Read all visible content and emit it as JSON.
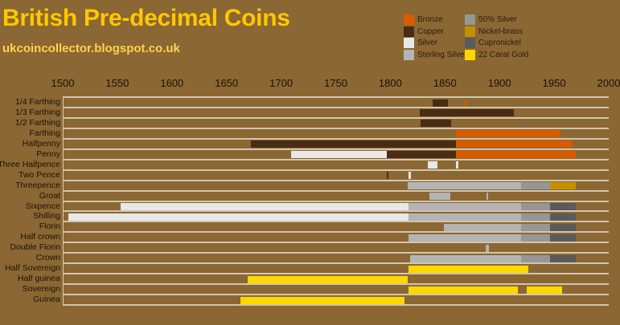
{
  "header": {
    "title": "British Pre-decimal Coins",
    "subtitle": "ukcoincollector.blogspot.co.uk"
  },
  "legend": [
    {
      "label": "Bronze",
      "color": "#d95b00"
    },
    {
      "label": "Copper",
      "color": "#4a2c14"
    },
    {
      "label": "Silver",
      "color": "#e8e8e8"
    },
    {
      "label": "Sterling Silver",
      "color": "#b4b4b4"
    },
    {
      "label": "50% Silver",
      "color": "#969696"
    },
    {
      "label": "Nickel-brass",
      "color": "#c49000"
    },
    {
      "label": "Cupronickel",
      "color": "#5a5a5a"
    },
    {
      "label": "22 Carat Gold",
      "color": "#ffd700"
    }
  ],
  "chart_data": {
    "type": "bar",
    "subtype": "horizontal timeline (Gantt)",
    "title": "British Pre-decimal Coins",
    "subtitle": "ukcoincollector.blogspot.co.uk",
    "xlabel": "",
    "ylabel": "",
    "xlim": [
      1500,
      2000
    ],
    "x_ticks": [
      1500,
      1550,
      1600,
      1650,
      1700,
      1750,
      1800,
      1850,
      1900,
      1950,
      2000
    ],
    "grid": "horizontal row separators",
    "legend_position": "top-right",
    "categories": [
      "1/4 Farthing",
      "1/3 Farthing",
      "1/2 Farthing",
      "Farthing",
      "Halfpenny",
      "Penny",
      "Three Halfpence",
      "Two Pence",
      "Threepence",
      "Groat",
      "Sixpence",
      "Shilling",
      "Florin",
      "Half crown",
      "Double Florin",
      "Crown",
      "Half Sovereign",
      "Half guinea",
      "Sovereign",
      "Guinea"
    ],
    "rows": [
      {
        "coin": "1/4 Farthing",
        "segments": [
          {
            "metal": "Copper",
            "start": 1839,
            "end": 1853
          },
          {
            "metal": "Bronze",
            "start": 1868,
            "end": 1869
          }
        ]
      },
      {
        "coin": "1/3 Farthing",
        "segments": [
          {
            "metal": "Copper",
            "start": 1827,
            "end": 1913
          }
        ]
      },
      {
        "coin": "1/2 Farthing",
        "segments": [
          {
            "metal": "Copper",
            "start": 1828,
            "end": 1856
          }
        ]
      },
      {
        "coin": "Farthing",
        "segments": [
          {
            "metal": "Bronze",
            "start": 1860,
            "end": 1956
          }
        ]
      },
      {
        "coin": "Halfpenny",
        "segments": [
          {
            "metal": "Copper",
            "start": 1672,
            "end": 1860
          },
          {
            "metal": "Bronze",
            "start": 1860,
            "end": 1967
          }
        ]
      },
      {
        "coin": "Penny",
        "segments": [
          {
            "metal": "Silver",
            "start": 1709,
            "end": 1797
          },
          {
            "metal": "Copper",
            "start": 1797,
            "end": 1860
          },
          {
            "metal": "Bronze",
            "start": 1860,
            "end": 1970
          }
        ]
      },
      {
        "coin": "Three Halfpence",
        "segments": [
          {
            "metal": "Silver",
            "start": 1834,
            "end": 1843
          },
          {
            "metal": "Silver",
            "start": 1860,
            "end": 1862
          }
        ]
      },
      {
        "coin": "Two Pence",
        "segments": [
          {
            "metal": "Copper",
            "start": 1797,
            "end": 1798
          },
          {
            "metal": "Silver",
            "start": 1817,
            "end": 1819
          }
        ]
      },
      {
        "coin": "Threepence",
        "segments": [
          {
            "metal": "Sterling Silver",
            "start": 1816,
            "end": 1920
          },
          {
            "metal": "50% Silver",
            "start": 1920,
            "end": 1946
          },
          {
            "metal": "Nickel-brass",
            "start": 1946,
            "end": 1970
          }
        ]
      },
      {
        "coin": "Groat",
        "segments": [
          {
            "metal": "Sterling Silver",
            "start": 1836,
            "end": 1855
          },
          {
            "metal": "Sterling Silver",
            "start": 1888,
            "end": 1889
          }
        ]
      },
      {
        "coin": "Sixpence",
        "segments": [
          {
            "metal": "Silver",
            "start": 1553,
            "end": 1817
          },
          {
            "metal": "Sterling Silver",
            "start": 1817,
            "end": 1920
          },
          {
            "metal": "50% Silver",
            "start": 1920,
            "end": 1946
          },
          {
            "metal": "Cupronickel",
            "start": 1946,
            "end": 1970
          }
        ]
      },
      {
        "coin": "Shilling",
        "segments": [
          {
            "metal": "Silver",
            "start": 1505,
            "end": 1817
          },
          {
            "metal": "Sterling Silver",
            "start": 1817,
            "end": 1920
          },
          {
            "metal": "50% Silver",
            "start": 1920,
            "end": 1946
          },
          {
            "metal": "Cupronickel",
            "start": 1946,
            "end": 1970
          }
        ]
      },
      {
        "coin": "Florin",
        "segments": [
          {
            "metal": "Sterling Silver",
            "start": 1849,
            "end": 1920
          },
          {
            "metal": "50% Silver",
            "start": 1920,
            "end": 1946
          },
          {
            "metal": "Cupronickel",
            "start": 1946,
            "end": 1970
          }
        ]
      },
      {
        "coin": "Half crown",
        "segments": [
          {
            "metal": "Sterling Silver",
            "start": 1817,
            "end": 1920
          },
          {
            "metal": "50% Silver",
            "start": 1920,
            "end": 1946
          },
          {
            "metal": "Cupronickel",
            "start": 1946,
            "end": 1970
          }
        ]
      },
      {
        "coin": "Double Florin",
        "segments": [
          {
            "metal": "Sterling Silver",
            "start": 1887,
            "end": 1890
          }
        ]
      },
      {
        "coin": "Crown",
        "segments": [
          {
            "metal": "Sterling Silver",
            "start": 1818,
            "end": 1920
          },
          {
            "metal": "50% Silver",
            "start": 1920,
            "end": 1946
          },
          {
            "metal": "Cupronickel",
            "start": 1946,
            "end": 1970
          }
        ]
      },
      {
        "coin": "Half Sovereign",
        "segments": [
          {
            "metal": "22 Carat Gold",
            "start": 1817,
            "end": 1926
          }
        ]
      },
      {
        "coin": "Half guinea",
        "segments": [
          {
            "metal": "22 Carat Gold",
            "start": 1669,
            "end": 1816
          }
        ]
      },
      {
        "coin": "Sovereign",
        "segments": [
          {
            "metal": "22 Carat Gold",
            "start": 1817,
            "end": 1917
          },
          {
            "metal": "22 Carat Gold",
            "start": 1925,
            "end": 1957
          }
        ]
      },
      {
        "coin": "Guinea",
        "segments": [
          {
            "metal": "22 Carat Gold",
            "start": 1663,
            "end": 1813
          }
        ]
      }
    ]
  }
}
